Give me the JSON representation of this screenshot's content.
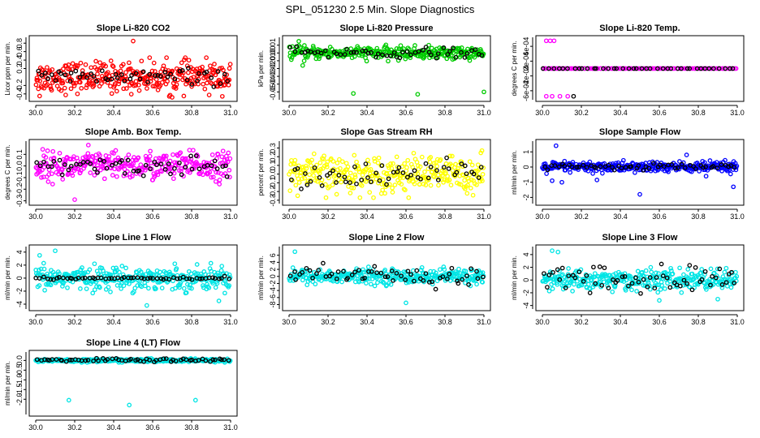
{
  "page_title": "SPL_051230  2.5 Min. Slope Diagnostics",
  "chart_data": [
    {
      "type": "scatter",
      "title": "Slope Li-820 CO2",
      "xlabel": "",
      "ylabel": "Licor ppm per min.",
      "xlim": [
        30.0,
        31.0
      ],
      "ylim": [
        -0.5,
        0.9
      ],
      "xticks": [
        "30.0",
        "30.2",
        "30.4",
        "30.6",
        "30.8",
        "31.0"
      ],
      "yticks": [
        "-0.4",
        "-0.2",
        "0.2",
        "0.4",
        "0.6",
        "0.8"
      ],
      "grid": false,
      "series": [
        {
          "color": "#ff0000",
          "center": 0.0,
          "spread": 0.22,
          "count": 340,
          "x_range": [
            30.0,
            31.0
          ],
          "outliers": [
            [
              30.5,
              0.85
            ],
            [
              30.02,
              -0.45
            ],
            [
              30.7,
              -0.48
            ]
          ]
        },
        {
          "color": "#000000",
          "center": 0.0,
          "spread": 0.12,
          "count": 55,
          "x_range": [
            30.0,
            31.0
          ],
          "outliers": []
        }
      ]
    },
    {
      "type": "scatter",
      "title": "Slope Li-820 Pressure",
      "xlabel": "",
      "ylabel": "kPa per min.",
      "xlim": [
        30.0,
        31.0
      ],
      "ylim": [
        -0.058,
        0.018
      ],
      "xticks": [
        "30.0",
        "30.2",
        "30.4",
        "30.6",
        "30.8",
        "31.0"
      ],
      "yticks": [
        "-0.05",
        "-0.04",
        "-0.03",
        "-0.02",
        "-0.01",
        "0.00",
        "0.01"
      ],
      "grid": false,
      "series": [
        {
          "color": "#00cc00",
          "center": 0.0,
          "spread": 0.005,
          "count": 320,
          "x_range": [
            30.0,
            31.0
          ],
          "outliers": [
            [
              30.33,
              -0.052
            ],
            [
              30.66,
              -0.053
            ],
            [
              31.0,
              -0.05
            ],
            [
              30.05,
              0.015
            ],
            [
              30.07,
              -0.016
            ]
          ]
        },
        {
          "color": "#000000",
          "center": 0.0,
          "spread": 0.004,
          "count": 55,
          "x_range": [
            30.0,
            31.0
          ],
          "outliers": []
        }
      ]
    },
    {
      "type": "scatter",
      "title": "Slope Li-820 Temp.",
      "xlabel": "",
      "ylabel": "degrees C per min.",
      "xlim": [
        30.0,
        31.0
      ],
      "ylim": [
        -0.0008,
        0.0008
      ],
      "xticks": [
        "30.0",
        "30.2",
        "30.4",
        "30.6",
        "30.8",
        "31.0"
      ],
      "yticks": [
        "-6e-04",
        "-2e-04",
        "2e-04",
        "6e-04"
      ],
      "grid": false,
      "series": [
        {
          "color": "#ff00ff",
          "center": 0.0,
          "spread": 0.0,
          "count": 120,
          "x_range": [
            30.0,
            31.0
          ],
          "outliers": [
            [
              30.02,
              0.00075
            ],
            [
              30.04,
              0.00075
            ],
            [
              30.06,
              0.00075
            ],
            [
              30.02,
              -0.00075
            ],
            [
              30.05,
              -0.00075
            ],
            [
              30.09,
              -0.00075
            ],
            [
              30.13,
              -0.00075
            ]
          ]
        },
        {
          "color": "#000000",
          "center": 0.0,
          "spread": 0.0,
          "count": 40,
          "x_range": [
            30.0,
            31.0
          ],
          "outliers": [
            [
              30.16,
              -0.00075
            ]
          ]
        }
      ]
    },
    {
      "type": "scatter",
      "title": "Slope Amb. Box Temp.",
      "xlabel": "",
      "ylabel": "degrees C per min.",
      "xlim": [
        30.0,
        31.0
      ],
      "ylim": [
        -0.31,
        0.2
      ],
      "xticks": [
        "30.0",
        "30.2",
        "30.4",
        "30.6",
        "30.8",
        "31.0"
      ],
      "yticks": [
        "-0.3",
        "-0.2",
        "-0.1",
        "0.0",
        "0.1"
      ],
      "grid": false,
      "series": [
        {
          "color": "#ff00ff",
          "center": 0.0,
          "spread": 0.075,
          "count": 320,
          "x_range": [
            30.0,
            31.0
          ],
          "outliers": [
            [
              30.27,
              0.18
            ],
            [
              30.2,
              -0.29
            ]
          ]
        },
        {
          "color": "#000000",
          "center": 0.0,
          "spread": 0.05,
          "count": 55,
          "x_range": [
            30.0,
            31.0
          ],
          "outliers": []
        }
      ]
    },
    {
      "type": "scatter",
      "title": "Slope Gas Stream RH",
      "xlabel": "",
      "ylabel": "percent per min.",
      "xlim": [
        30.0,
        31.0
      ],
      "ylim": [
        -0.32,
        0.36
      ],
      "xticks": [
        "30.0",
        "30.2",
        "30.4",
        "30.6",
        "30.8",
        "31.0"
      ],
      "yticks": [
        "-0.3",
        "-0.2",
        "-0.1",
        "0.0",
        "0.1",
        "0.2",
        "0.3"
      ],
      "grid": false,
      "series": [
        {
          "color": "#ffff00",
          "center": 0.0,
          "spread": 0.13,
          "count": 330,
          "x_range": [
            30.0,
            31.0
          ],
          "outliers": []
        },
        {
          "color": "#000000",
          "center": 0.0,
          "spread": 0.09,
          "count": 55,
          "x_range": [
            30.0,
            31.0
          ],
          "outliers": []
        }
      ]
    },
    {
      "type": "scatter",
      "title": "Slope Sample Flow",
      "xlabel": "",
      "ylabel": "ml/min per min.",
      "xlim": [
        30.0,
        31.0
      ],
      "ylim": [
        -2.3,
        1.6
      ],
      "xticks": [
        "30.0",
        "30.2",
        "30.4",
        "30.6",
        "30.8",
        "31.0"
      ],
      "yticks": [
        "-2",
        "-1",
        "0",
        "1"
      ],
      "grid": false,
      "series": [
        {
          "color": "#0000ff",
          "center": 0.0,
          "spread": 0.22,
          "count": 340,
          "x_range": [
            30.0,
            31.0
          ],
          "outliers": [
            [
              30.07,
              1.4
            ],
            [
              30.28,
              -0.85
            ],
            [
              30.5,
              -1.8
            ],
            [
              30.74,
              0.8
            ],
            [
              30.84,
              -0.6
            ],
            [
              30.98,
              -1.3
            ],
            [
              30.05,
              -0.9
            ],
            [
              30.1,
              -1.0
            ]
          ]
        },
        {
          "color": "#000000",
          "center": 0.0,
          "spread": 0.12,
          "count": 55,
          "x_range": [
            30.0,
            31.0
          ],
          "outliers": []
        }
      ]
    },
    {
      "type": "scatter",
      "title": "Slope Line 1 Flow",
      "xlabel": "",
      "ylabel": "ml/min per min.",
      "xlim": [
        30.0,
        31.0
      ],
      "ylim": [
        -4.5,
        4.6
      ],
      "xticks": [
        "30.0",
        "30.2",
        "30.4",
        "30.6",
        "30.8",
        "31.0"
      ],
      "yticks": [
        "-4",
        "-2",
        "0",
        "2",
        "4"
      ],
      "grid": false,
      "series": [
        {
          "color": "#00e5e5",
          "center": 0.0,
          "spread": 1.1,
          "count": 330,
          "x_range": [
            30.0,
            31.0
          ],
          "outliers": [
            [
              30.1,
              4.2
            ],
            [
              30.57,
              -4.2
            ],
            [
              30.02,
              3.5
            ],
            [
              30.94,
              -3.5
            ]
          ]
        },
        {
          "color": "#000000",
          "center": 0.0,
          "spread": 0.15,
          "count": 60,
          "x_range": [
            30.0,
            31.0
          ],
          "outliers": []
        }
      ]
    },
    {
      "type": "scatter",
      "title": "Slope Line 2 Flow",
      "xlabel": "",
      "ylabel": "ml/min per min.",
      "xlim": [
        30.0,
        31.0
      ],
      "ylim": [
        -8.8,
        8.0
      ],
      "xticks": [
        "30.0",
        "30.2",
        "30.4",
        "30.6",
        "30.8",
        "31.0"
      ],
      "yticks": [
        "-8",
        "-6",
        "-4",
        "-2",
        "0",
        "2",
        "4",
        "6"
      ],
      "grid": false,
      "series": [
        {
          "color": "#00e5e5",
          "center": 0.0,
          "spread": 1.3,
          "count": 330,
          "x_range": [
            30.0,
            31.0
          ],
          "outliers": [
            [
              30.03,
              7.0
            ],
            [
              30.6,
              -7.5
            ]
          ]
        },
        {
          "color": "#000000",
          "center": 0.0,
          "spread": 1.8,
          "count": 60,
          "x_range": [
            30.0,
            31.0
          ],
          "outliers": []
        }
      ]
    },
    {
      "type": "scatter",
      "title": "Slope Line 3 Flow",
      "xlabel": "",
      "ylabel": "ml/min per min.",
      "xlim": [
        30.0,
        31.0
      ],
      "ylim": [
        -4.3,
        5.0
      ],
      "xticks": [
        "30.0",
        "30.2",
        "30.4",
        "30.6",
        "30.8",
        "31.0"
      ],
      "yticks": [
        "-4",
        "-2",
        "0",
        "2",
        "4"
      ],
      "grid": false,
      "series": [
        {
          "color": "#00e5e5",
          "center": 0.0,
          "spread": 1.0,
          "count": 330,
          "x_range": [
            30.0,
            31.0
          ],
          "outliers": [
            [
              30.05,
              4.6
            ],
            [
              30.08,
              4.4
            ],
            [
              30.6,
              -3.2
            ],
            [
              30.9,
              -3.0
            ]
          ]
        },
        {
          "color": "#000000",
          "center": 0.0,
          "spread": 1.4,
          "count": 60,
          "x_range": [
            30.0,
            31.0
          ],
          "outliers": []
        }
      ]
    },
    {
      "type": "scatter",
      "title": "Slope Line 4 (LT) Flow",
      "xlabel": "",
      "ylabel": "ml/min per min.",
      "xlim": [
        30.0,
        31.0
      ],
      "ylim": [
        -2.7,
        0.35
      ],
      "xticks": [
        "30.0",
        "30.2",
        "30.4",
        "30.6",
        "30.8",
        "31.0"
      ],
      "yticks": [
        "-2.0",
        "-1.5",
        "-1.0",
        "-0.5",
        "0.0"
      ],
      "grid": false,
      "series": [
        {
          "color": "#00e5e5",
          "center": 0.0,
          "spread": 0.05,
          "count": 330,
          "x_range": [
            30.0,
            31.0
          ],
          "outliers": [
            [
              30.17,
              -2.05
            ],
            [
              30.48,
              -2.3
            ],
            [
              30.82,
              -2.05
            ]
          ]
        },
        {
          "color": "#000000",
          "center": 0.02,
          "spread": 0.06,
          "count": 60,
          "x_range": [
            30.0,
            31.0
          ],
          "outliers": []
        }
      ]
    }
  ]
}
